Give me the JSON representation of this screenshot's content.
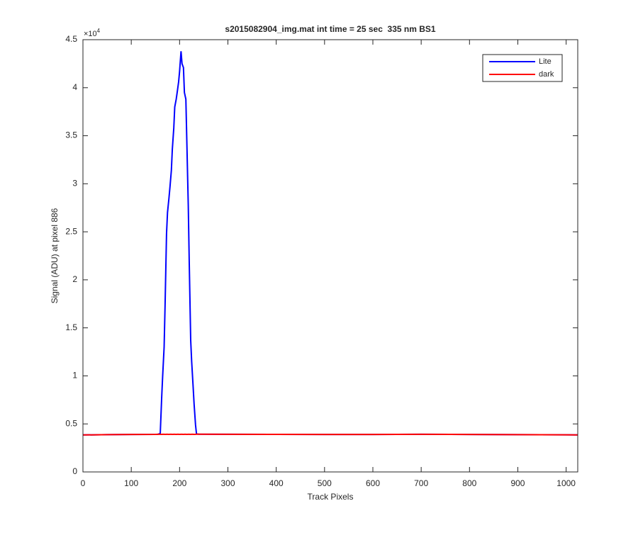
{
  "chart_data": {
    "type": "line",
    "title": "s2015082904_img.mat int time = 25 sec  335 nm BS1",
    "xlabel": "Track Pixels",
    "ylabel": "Signal (ADU) at pixel 886",
    "ymultiplier": {
      "base": "×10",
      "exponent": "4"
    },
    "x": [
      0,
      50,
      100,
      150,
      155,
      160,
      163,
      165,
      168,
      170,
      173,
      175,
      178,
      180,
      183,
      185,
      188,
      190,
      193,
      195,
      198,
      200,
      203,
      205,
      208,
      210,
      213,
      215,
      218,
      220,
      223,
      225,
      228,
      230,
      233,
      235,
      240,
      300,
      400,
      500,
      600,
      700,
      800,
      900,
      1000,
      1024
    ],
    "series": [
      {
        "name": "Lite",
        "color": "#0000ff",
        "values": [
          3850,
          3880,
          3900,
          3910,
          3920,
          4000,
          7800,
          10000,
          13000,
          17400,
          24800,
          27000,
          28500,
          29600,
          31400,
          33600,
          35800,
          38000,
          38800,
          39500,
          40600,
          41700,
          43800,
          42500,
          42100,
          39500,
          38800,
          34400,
          27700,
          21800,
          13700,
          11500,
          8900,
          7100,
          4900,
          3950,
          3930,
          3920,
          3910,
          3900,
          3900,
          3920,
          3900,
          3880,
          3860,
          3850
        ]
      },
      {
        "name": "dark",
        "color": "#ff0000",
        "values": [
          3850,
          3880,
          3900,
          3910,
          3920,
          3920,
          3910,
          3920,
          3920,
          3910,
          3920,
          3920,
          3910,
          3920,
          3920,
          3910,
          3920,
          3920,
          3910,
          3920,
          3920,
          3910,
          3920,
          3920,
          3910,
          3920,
          3920,
          3910,
          3920,
          3920,
          3910,
          3920,
          3920,
          3910,
          3920,
          3930,
          3930,
          3920,
          3910,
          3900,
          3900,
          3920,
          3900,
          3880,
          3860,
          3850
        ]
      }
    ],
    "xlim": [
      0,
      1024
    ],
    "xticks": [
      0,
      100,
      200,
      300,
      400,
      500,
      600,
      700,
      800,
      900,
      1000
    ],
    "ylim": [
      0,
      45000
    ],
    "yticks": [
      0,
      {
        "value": 5000,
        "label": "0.5"
      },
      {
        "value": 10000,
        "label": "1"
      },
      {
        "value": 15000,
        "label": "1.5"
      },
      {
        "value": 20000,
        "label": "2"
      },
      {
        "value": 25000,
        "label": "2.5"
      },
      {
        "value": 30000,
        "label": "3"
      },
      {
        "value": 35000,
        "label": "3.5"
      },
      {
        "value": 40000,
        "label": "4"
      },
      {
        "value": 45000,
        "label": "4.5"
      }
    ],
    "legend": "upper-right",
    "grid": false
  }
}
